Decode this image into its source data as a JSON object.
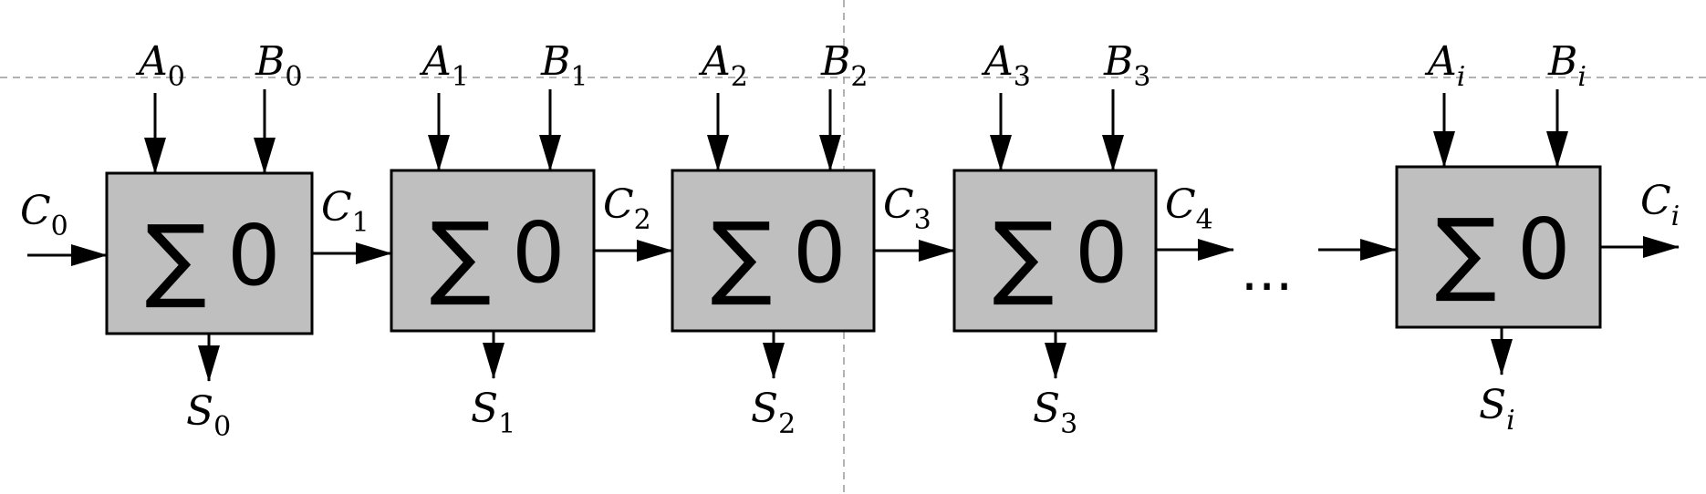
{
  "adders": [
    {
      "sum_symbol": "∑",
      "value": "0",
      "a": "A",
      "a_sub": "0",
      "b": "B",
      "b_sub": "0",
      "s": "S",
      "s_sub": "0",
      "c_out": "C",
      "c_out_sub": "1",
      "sub_italic": false
    },
    {
      "sum_symbol": "∑",
      "value": "0",
      "a": "A",
      "a_sub": "1",
      "b": "B",
      "b_sub": "1",
      "s": "S",
      "s_sub": "1",
      "c_out": "C",
      "c_out_sub": "2",
      "sub_italic": false
    },
    {
      "sum_symbol": "∑",
      "value": "0",
      "a": "A",
      "a_sub": "2",
      "b": "B",
      "b_sub": "2",
      "s": "S",
      "s_sub": "2",
      "c_out": "C",
      "c_out_sub": "3",
      "sub_italic": false
    },
    {
      "sum_symbol": "∑",
      "value": "0",
      "a": "A",
      "a_sub": "3",
      "b": "B",
      "b_sub": "3",
      "s": "S",
      "s_sub": "3",
      "c_out": "C",
      "c_out_sub": "4",
      "sub_italic": false
    },
    {
      "sum_symbol": "∑",
      "value": "0",
      "a": "A",
      "a_sub": "i",
      "b": "B",
      "b_sub": "i",
      "s": "S",
      "s_sub": "i",
      "c_out": "C",
      "c_out_sub": "i",
      "sub_italic": true
    }
  ],
  "carry_in": {
    "label": "C",
    "sub": "0"
  },
  "ellipsis": "..."
}
